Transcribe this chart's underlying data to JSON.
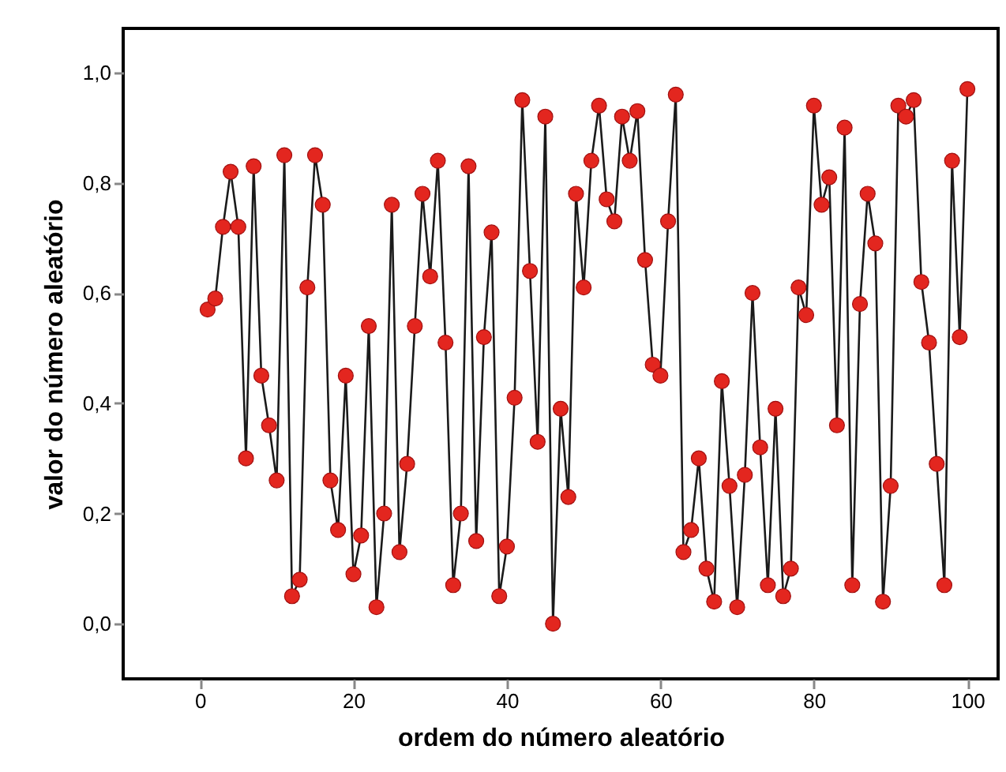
{
  "chart_data": {
    "type": "line",
    "xlabel": "ordem do número aleatório",
    "ylabel": "valor do número aleatório",
    "x": [
      1,
      2,
      3,
      4,
      5,
      6,
      7,
      8,
      9,
      10,
      11,
      12,
      13,
      14,
      15,
      16,
      17,
      18,
      19,
      20,
      21,
      22,
      23,
      24,
      25,
      26,
      27,
      28,
      29,
      30,
      31,
      32,
      33,
      34,
      35,
      36,
      37,
      38,
      39,
      40,
      41,
      42,
      43,
      44,
      45,
      46,
      47,
      48,
      49,
      50,
      51,
      52,
      53,
      54,
      55,
      56,
      57,
      58,
      59,
      60,
      61,
      62,
      63,
      64,
      65,
      66,
      67,
      68,
      69,
      70,
      71,
      72,
      73,
      74,
      75,
      76,
      77,
      78,
      79,
      80,
      81,
      82,
      83,
      84,
      85,
      86,
      87,
      88,
      89,
      90,
      91,
      92,
      93,
      94,
      95,
      96,
      97,
      98,
      99,
      100
    ],
    "series": [
      {
        "color": "#e3261f",
        "values": [
          0.57,
          0.59,
          0.72,
          0.82,
          0.72,
          0.3,
          0.83,
          0.45,
          0.36,
          0.26,
          0.85,
          0.05,
          0.08,
          0.61,
          0.85,
          0.76,
          0.26,
          0.17,
          0.45,
          0.09,
          0.16,
          0.54,
          0.03,
          0.2,
          0.76,
          0.13,
          0.29,
          0.54,
          0.78,
          0.63,
          0.84,
          0.51,
          0.07,
          0.2,
          0.83,
          0.15,
          0.52,
          0.71,
          0.05,
          0.14,
          0.41,
          0.95,
          0.64,
          0.33,
          0.92,
          0.0,
          0.39,
          0.23,
          0.78,
          0.61,
          0.84,
          0.94,
          0.77,
          0.73,
          0.92,
          0.84,
          0.93,
          0.66,
          0.47,
          0.45,
          0.73,
          0.96,
          0.13,
          0.17,
          0.3,
          0.1,
          0.04,
          0.44,
          0.25,
          0.03,
          0.27,
          0.6,
          0.32,
          0.07,
          0.39,
          0.05,
          0.1,
          0.61,
          0.56,
          0.94,
          0.76,
          0.81,
          0.36,
          0.9,
          0.07,
          0.58,
          0.78,
          0.69,
          0.04,
          0.25,
          0.94,
          0.92,
          0.95,
          0.62,
          0.51,
          0.29,
          0.07,
          0.84,
          0.52,
          0.97
        ]
      }
    ],
    "xlim": [
      -10,
      104
    ],
    "xticks": [
      0,
      20,
      40,
      60,
      80,
      100
    ],
    "ylim": [
      -0.1,
      1.08
    ],
    "yticks": [
      {
        "value": 0,
        "label": "0,0"
      },
      {
        "value": 0.2,
        "label": "0,2"
      },
      {
        "value": 0.4,
        "label": "0,4"
      },
      {
        "value": 0.6,
        "label": "0,6"
      },
      {
        "value": 0.8,
        "label": "0,8"
      },
      {
        "value": 1.0,
        "label": "1,0"
      }
    ],
    "marker": "circle",
    "line_style": "solid"
  }
}
